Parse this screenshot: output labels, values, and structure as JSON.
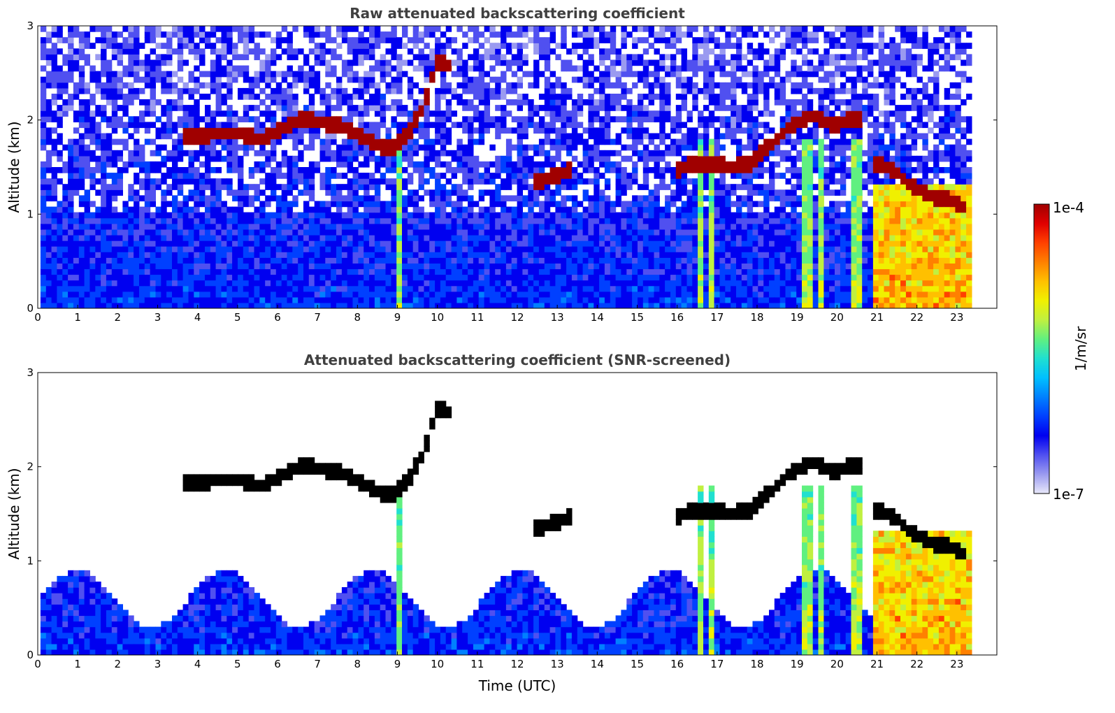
{
  "chart_data": [
    {
      "type": "heatmap",
      "title": "Raw attenuated backscattering coefficient",
      "xlabel": "",
      "ylabel": "Altitude (km)",
      "xlim": [
        0,
        24
      ],
      "ylim": [
        0,
        3
      ],
      "x_ticks": [
        "0",
        "1",
        "2",
        "3",
        "4",
        "5",
        "6",
        "7",
        "8",
        "9",
        "10",
        "11",
        "12",
        "13",
        "14",
        "15",
        "16",
        "17",
        "18",
        "19",
        "20",
        "21",
        "22",
        "23"
      ],
      "y_ticks": [
        "0",
        "1",
        "2",
        "3"
      ],
      "data_end_hour": 23.3,
      "scale": "log",
      "features": [
        {
          "name": "cloud-layer",
          "points": [
            [
              3.5,
              1.83
            ],
            [
              4.0,
              1.82
            ],
            [
              4.5,
              1.87
            ],
            [
              5.0,
              1.86
            ],
            [
              5.5,
              1.78
            ],
            [
              6.0,
              1.9
            ],
            [
              6.5,
              2.0
            ],
            [
              6.8,
              2.0
            ],
            [
              7.0,
              1.98
            ],
            [
              7.5,
              1.93
            ],
            [
              8.0,
              1.85
            ],
            [
              8.5,
              1.72
            ],
            [
              8.8,
              1.68
            ],
            [
              9.2,
              1.85
            ],
            [
              9.6,
              2.15
            ],
            [
              9.9,
              2.62
            ],
            [
              10.3,
              2.58
            ]
          ]
        },
        {
          "name": "cloud-layer",
          "points": [
            [
              12.3,
              1.35
            ],
            [
              12.7,
              1.38
            ],
            [
              13.1,
              1.45
            ],
            [
              13.3,
              1.5
            ]
          ]
        },
        {
          "name": "cloud-layer",
          "points": [
            [
              15.9,
              1.48
            ],
            [
              16.3,
              1.52
            ],
            [
              16.8,
              1.55
            ],
            [
              17.3,
              1.5
            ],
            [
              17.8,
              1.55
            ],
            [
              18.3,
              1.75
            ],
            [
              18.8,
              1.95
            ],
            [
              19.3,
              2.05
            ],
            [
              19.8,
              1.95
            ],
            [
              20.2,
              2.0
            ],
            [
              20.6,
              2.0
            ]
          ]
        },
        {
          "name": "cloud-layer",
          "points": [
            [
              20.9,
              1.55
            ],
            [
              21.4,
              1.45
            ],
            [
              21.8,
              1.3
            ],
            [
              22.3,
              1.2
            ],
            [
              22.8,
              1.15
            ],
            [
              23.2,
              1.05
            ]
          ]
        }
      ]
    },
    {
      "type": "heatmap",
      "title": "Attenuated backscattering coefficient (SNR-screened)",
      "xlabel": "Time (UTC)",
      "ylabel": "Altitude (km)",
      "xlim": [
        0,
        24
      ],
      "ylim": [
        0,
        3
      ],
      "x_ticks": [
        "0",
        "1",
        "2",
        "3",
        "4",
        "5",
        "6",
        "7",
        "8",
        "9",
        "10",
        "11",
        "12",
        "13",
        "14",
        "15",
        "16",
        "17",
        "18",
        "19",
        "20",
        "21",
        "22",
        "23"
      ],
      "y_ticks": [
        "0",
        "1",
        "2",
        "3"
      ],
      "data_end_hour": 23.3,
      "scale": "log"
    }
  ],
  "colorbar": {
    "label": "1/m/sr",
    "max_label": "1e-4",
    "min_label": "1e-7",
    "colors": [
      "#e8e8fa",
      "#9a9af0",
      "#5050f0",
      "#0000f0",
      "#0040ff",
      "#0080ff",
      "#00c0ff",
      "#20e0d0",
      "#60f080",
      "#c0f040",
      "#f0f000",
      "#ffc000",
      "#ff8000",
      "#ff4000",
      "#e00000",
      "#a00000"
    ]
  }
}
